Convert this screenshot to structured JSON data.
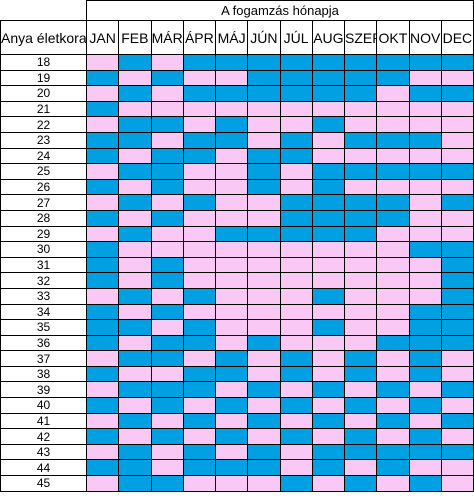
{
  "title": "A fogamzás hónapja",
  "age_header": "Anya életkora",
  "months": [
    "JAN",
    "FEB",
    "MÁR",
    "ÁPR",
    "MÁJ",
    "JÚN",
    "JÚL",
    "AUG",
    "SZEP",
    "OKT",
    "NOV",
    "DEC"
  ],
  "colors": {
    "G": "#f9c8f4",
    "B": "#00a0e3"
  },
  "rows": [
    {
      "age": "18",
      "cells": [
        "G",
        "B",
        "G",
        "B",
        "B",
        "B",
        "B",
        "B",
        "B",
        "B",
        "B",
        "B"
      ]
    },
    {
      "age": "19",
      "cells": [
        "B",
        "G",
        "B",
        "G",
        "G",
        "B",
        "B",
        "B",
        "B",
        "B",
        "G",
        "G"
      ]
    },
    {
      "age": "20",
      "cells": [
        "G",
        "B",
        "G",
        "B",
        "B",
        "B",
        "B",
        "B",
        "B",
        "G",
        "B",
        "B"
      ]
    },
    {
      "age": "21",
      "cells": [
        "B",
        "G",
        "G",
        "G",
        "G",
        "G",
        "G",
        "G",
        "G",
        "G",
        "G",
        "G"
      ]
    },
    {
      "age": "22",
      "cells": [
        "G",
        "B",
        "B",
        "G",
        "B",
        "G",
        "G",
        "B",
        "G",
        "G",
        "G",
        "G"
      ]
    },
    {
      "age": "23",
      "cells": [
        "B",
        "B",
        "G",
        "B",
        "B",
        "G",
        "B",
        "G",
        "B",
        "B",
        "B",
        "G"
      ]
    },
    {
      "age": "24",
      "cells": [
        "B",
        "G",
        "B",
        "B",
        "G",
        "B",
        "B",
        "G",
        "G",
        "G",
        "G",
        "G"
      ]
    },
    {
      "age": "25",
      "cells": [
        "G",
        "B",
        "B",
        "G",
        "G",
        "B",
        "G",
        "B",
        "B",
        "B",
        "B",
        "B"
      ]
    },
    {
      "age": "26",
      "cells": [
        "B",
        "G",
        "B",
        "G",
        "G",
        "B",
        "G",
        "B",
        "G",
        "G",
        "G",
        "G"
      ]
    },
    {
      "age": "27",
      "cells": [
        "G",
        "B",
        "G",
        "B",
        "G",
        "G",
        "B",
        "B",
        "B",
        "B",
        "G",
        "B"
      ]
    },
    {
      "age": "28",
      "cells": [
        "B",
        "G",
        "B",
        "G",
        "G",
        "G",
        "B",
        "B",
        "B",
        "B",
        "G",
        "G"
      ]
    },
    {
      "age": "29",
      "cells": [
        "G",
        "B",
        "G",
        "G",
        "B",
        "B",
        "B",
        "B",
        "B",
        "G",
        "G",
        "G"
      ]
    },
    {
      "age": "30",
      "cells": [
        "B",
        "G",
        "G",
        "G",
        "G",
        "G",
        "G",
        "G",
        "G",
        "G",
        "B",
        "B"
      ]
    },
    {
      "age": "31",
      "cells": [
        "B",
        "G",
        "B",
        "G",
        "G",
        "G",
        "G",
        "G",
        "G",
        "G",
        "G",
        "B"
      ]
    },
    {
      "age": "32",
      "cells": [
        "B",
        "G",
        "B",
        "G",
        "G",
        "G",
        "G",
        "G",
        "G",
        "G",
        "G",
        "B"
      ]
    },
    {
      "age": "33",
      "cells": [
        "G",
        "B",
        "G",
        "B",
        "G",
        "G",
        "G",
        "B",
        "G",
        "G",
        "G",
        "B"
      ]
    },
    {
      "age": "34",
      "cells": [
        "B",
        "G",
        "B",
        "G",
        "G",
        "G",
        "G",
        "G",
        "G",
        "G",
        "B",
        "B"
      ]
    },
    {
      "age": "35",
      "cells": [
        "B",
        "B",
        "G",
        "B",
        "G",
        "G",
        "G",
        "B",
        "G",
        "G",
        "B",
        "B"
      ]
    },
    {
      "age": "36",
      "cells": [
        "B",
        "G",
        "B",
        "B",
        "G",
        "B",
        "G",
        "G",
        "G",
        "B",
        "B",
        "B"
      ]
    },
    {
      "age": "37",
      "cells": [
        "G",
        "B",
        "B",
        "G",
        "B",
        "G",
        "B",
        "G",
        "B",
        "G",
        "B",
        "G"
      ]
    },
    {
      "age": "38",
      "cells": [
        "B",
        "G",
        "G",
        "B",
        "B",
        "G",
        "B",
        "G",
        "B",
        "G",
        "B",
        "G"
      ]
    },
    {
      "age": "39",
      "cells": [
        "G",
        "B",
        "B",
        "B",
        "G",
        "B",
        "G",
        "B",
        "G",
        "B",
        "G",
        "B"
      ]
    },
    {
      "age": "40",
      "cells": [
        "B",
        "G",
        "B",
        "G",
        "B",
        "G",
        "B",
        "G",
        "B",
        "G",
        "B",
        "G"
      ]
    },
    {
      "age": "41",
      "cells": [
        "G",
        "B",
        "G",
        "B",
        "G",
        "B",
        "G",
        "B",
        "G",
        "B",
        "G",
        "B"
      ]
    },
    {
      "age": "42",
      "cells": [
        "B",
        "G",
        "B",
        "G",
        "B",
        "G",
        "B",
        "G",
        "B",
        "G",
        "B",
        "G"
      ]
    },
    {
      "age": "43",
      "cells": [
        "G",
        "B",
        "G",
        "B",
        "G",
        "B",
        "G",
        "B",
        "B",
        "B",
        "B",
        "B"
      ]
    },
    {
      "age": "44",
      "cells": [
        "B",
        "B",
        "G",
        "B",
        "B",
        "B",
        "G",
        "B",
        "G",
        "B",
        "G",
        "G"
      ]
    },
    {
      "age": "45",
      "cells": [
        "G",
        "B",
        "B",
        "G",
        "G",
        "G",
        "B",
        "G",
        "B",
        "G",
        "B",
        "G"
      ]
    }
  ]
}
